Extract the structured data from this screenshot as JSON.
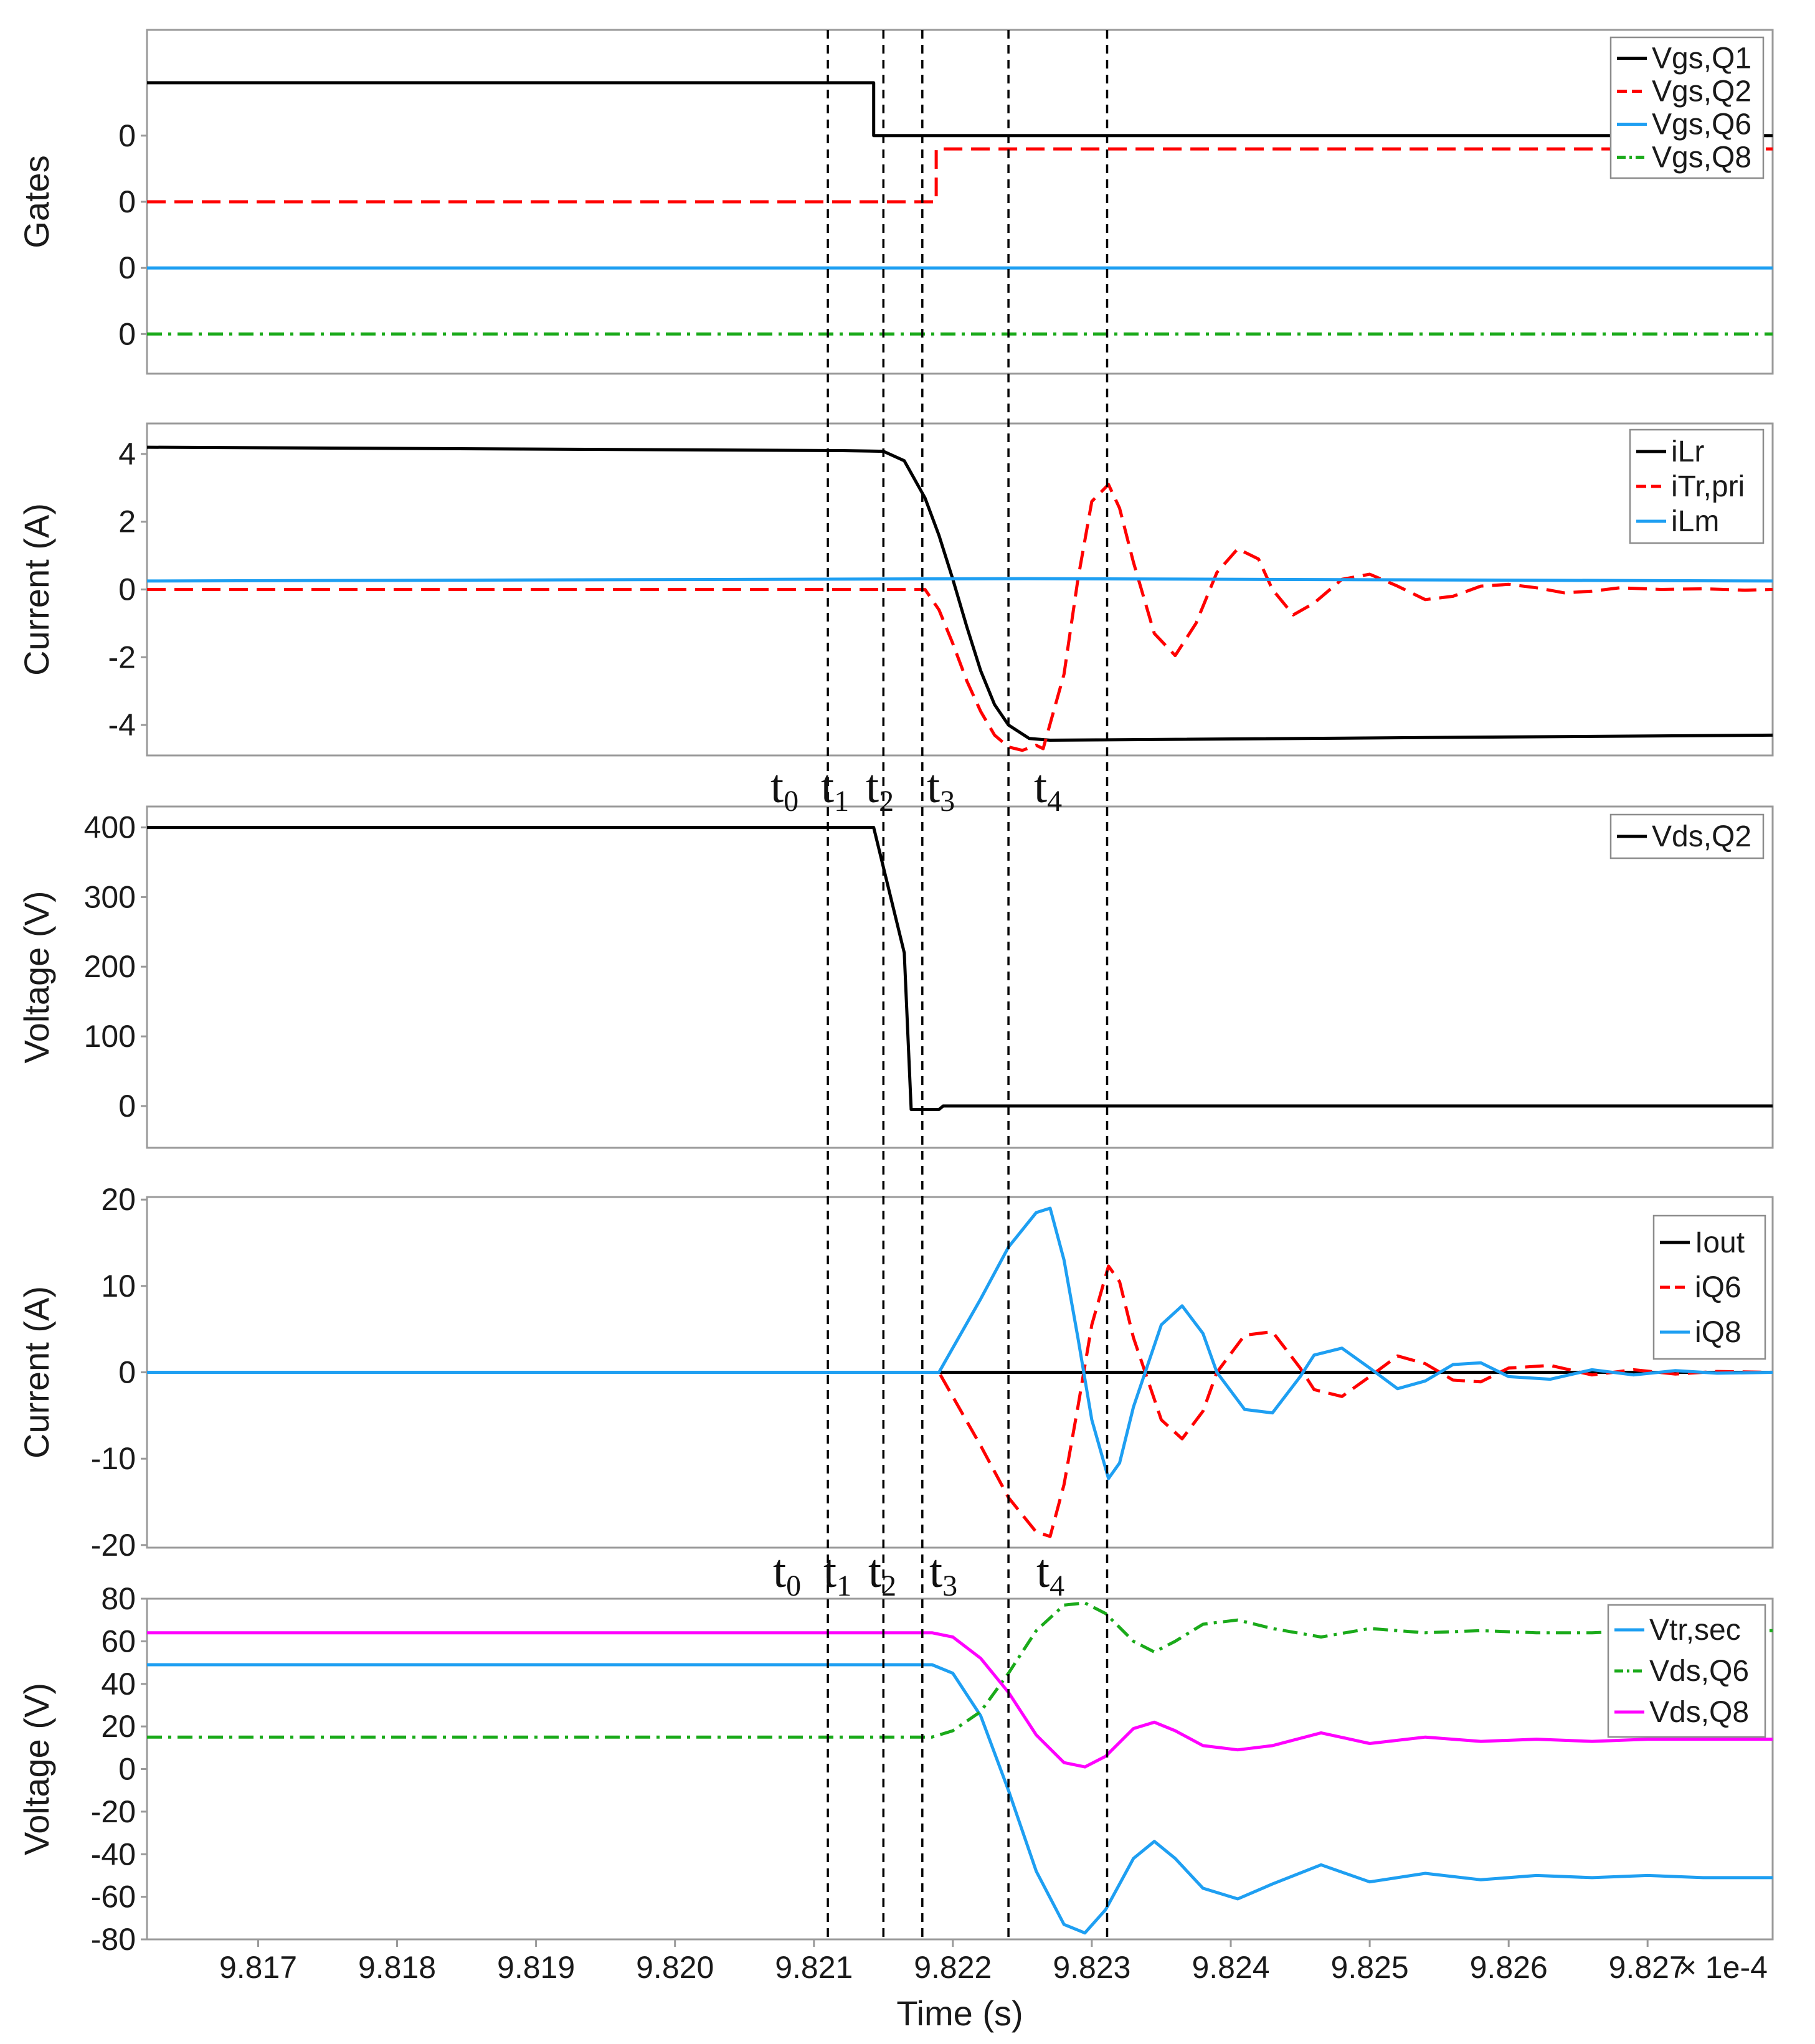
{
  "figure": {
    "x_scale_note": "× 1e-4",
    "xlabel": "Time (s)",
    "x_ticks": [
      "9.817",
      "9.818",
      "9.819",
      "9.820",
      "9.821",
      "9.822",
      "9.823",
      "9.824",
      "9.825",
      "9.826",
      "9.827"
    ],
    "time_markers": {
      "labels": [
        "t",
        "t",
        "t",
        "t",
        "t"
      ],
      "subscripts": [
        "0",
        "1",
        "2",
        "3",
        "4"
      ],
      "times_e4": [
        9.8211,
        9.8215,
        9.82178,
        9.8224,
        9.82311
      ]
    }
  },
  "chart_data": [
    {
      "type": "line",
      "id": "gates",
      "ylabel": "Gates",
      "xlim": [
        9.8162,
        9.8279
      ],
      "ylim": [
        -0.6,
        4.6
      ],
      "y_ticks": [
        "0",
        "0",
        "0",
        "0"
      ],
      "y_tick_positions": [
        3,
        2,
        1,
        0
      ],
      "series": [
        {
          "name": "Vgs,Q1",
          "color": "#000000",
          "dash": "solid",
          "x": [
            9.8162,
            9.82143,
            9.82143,
            9.8279
          ],
          "y": [
            3.8,
            3.8,
            3.0,
            3.0
          ]
        },
        {
          "name": "Vgs,Q2",
          "color": "#ff0000",
          "dash": "dash",
          "x": [
            9.8162,
            9.82188,
            9.82188,
            9.8279
          ],
          "y": [
            2.0,
            2.0,
            2.8,
            2.8
          ]
        },
        {
          "name": "Vgs,Q6",
          "color": "#1e9ff2",
          "dash": "solid",
          "x": [
            9.8162,
            9.8279
          ],
          "y": [
            1.0,
            1.0
          ]
        },
        {
          "name": "Vgs,Q8",
          "color": "#1aaa1a",
          "dash": "dashdot",
          "x": [
            9.8162,
            9.8279
          ],
          "y": [
            0.0,
            0.0
          ]
        }
      ]
    },
    {
      "type": "line",
      "id": "primary-current",
      "ylabel": "Current (A)",
      "xlim": [
        9.8162,
        9.8279
      ],
      "ylim": [
        -4.9,
        4.9
      ],
      "y_ticks": [
        "4",
        "2",
        "0",
        "-2",
        "-4"
      ],
      "y_tick_positions": [
        4,
        2,
        0,
        -2,
        -4
      ],
      "series": [
        {
          "name": "iLr",
          "color": "#000000",
          "dash": "solid",
          "x": [
            9.8162,
            9.8212,
            9.8215,
            9.82165,
            9.8218,
            9.8219,
            9.822,
            9.8221,
            9.8222,
            9.8223,
            9.8224,
            9.82255,
            9.8227,
            9.8279
          ],
          "y": [
            4.2,
            4.1,
            4.08,
            3.8,
            2.7,
            1.6,
            0.3,
            -1.1,
            -2.4,
            -3.4,
            -4.0,
            -4.4,
            -4.45,
            -4.3
          ]
        },
        {
          "name": "iTr,pri",
          "color": "#ff0000",
          "dash": "dash",
          "x": [
            9.8162,
            9.8218,
            9.8219,
            9.822,
            9.8221,
            9.8222,
            9.8223,
            9.8224,
            9.8225,
            9.8226,
            9.82265,
            9.8228,
            9.8229,
            9.823,
            9.82312,
            9.8232,
            9.8233,
            9.82345,
            9.8236,
            9.82375,
            9.8239,
            9.82405,
            9.8242,
            9.8243,
            9.82445,
            9.8246,
            9.8248,
            9.825,
            9.8252,
            9.8254,
            9.8256,
            9.8258,
            9.826,
            9.8262,
            9.8264,
            9.8266,
            9.8268,
            9.8271,
            9.8274,
            9.8277,
            9.8279
          ],
          "y": [
            0.0,
            0.0,
            -0.6,
            -1.6,
            -2.7,
            -3.6,
            -4.3,
            -4.65,
            -4.75,
            -4.6,
            -4.7,
            -2.5,
            0.3,
            2.6,
            3.1,
            2.4,
            0.8,
            -1.3,
            -1.95,
            -1.0,
            0.5,
            1.2,
            0.9,
            0.0,
            -0.75,
            -0.4,
            0.3,
            0.45,
            0.1,
            -0.3,
            -0.2,
            0.1,
            0.15,
            0.05,
            -0.1,
            -0.05,
            0.05,
            0.0,
            0.02,
            -0.02,
            0.0
          ]
        },
        {
          "name": "iLm",
          "color": "#1e9ff2",
          "dash": "solid",
          "x": [
            9.8162,
            9.8225,
            9.8279
          ],
          "y": [
            0.25,
            0.32,
            0.25
          ]
        }
      ]
    },
    {
      "type": "line",
      "id": "vds-q2",
      "ylabel": "Voltage (V)",
      "xlim": [
        9.8162,
        9.8279
      ],
      "ylim": [
        -60,
        430
      ],
      "y_ticks": [
        "400",
        "300",
        "200",
        "100",
        "0"
      ],
      "y_tick_positions": [
        400,
        300,
        200,
        100,
        0
      ],
      "series": [
        {
          "name": "Vds,Q2",
          "color": "#000000",
          "dash": "solid",
          "x": [
            9.8162,
            9.82143,
            9.82165,
            9.8217,
            9.8219,
            9.82193,
            9.8279
          ],
          "y": [
            400,
            400,
            220,
            -5,
            -5,
            0,
            0
          ]
        }
      ]
    },
    {
      "type": "line",
      "id": "secondary-current",
      "ylabel": "Current (A)",
      "xlim": [
        9.8162,
        9.8279
      ],
      "ylim": [
        -20.3,
        20.3
      ],
      "y_ticks": [
        "20",
        "10",
        "0",
        "-10",
        "-20"
      ],
      "y_tick_positions": [
        20,
        10,
        0,
        -10,
        -20
      ],
      "series": [
        {
          "name": "Iout",
          "color": "#000000",
          "dash": "solid",
          "x": [
            9.8162,
            9.8279
          ],
          "y": [
            0.0,
            0.0
          ]
        },
        {
          "name": "iQ6",
          "color": "#ff0000",
          "dash": "dash",
          "x": [
            9.8162,
            9.8219,
            9.8222,
            9.8224,
            9.8226,
            9.8227,
            9.8228,
            9.8229,
            9.823,
            9.82312,
            9.8232,
            9.8233,
            9.8235,
            9.82365,
            9.8238,
            9.8239,
            9.8241,
            9.8243,
            9.8245,
            9.8246,
            9.8248,
            9.825,
            9.8252,
            9.8254,
            9.8256,
            9.8258,
            9.826,
            9.8263,
            9.8266,
            9.8269,
            9.8272,
            9.8275,
            9.8279
          ],
          "y": [
            0.0,
            0.0,
            -8.5,
            -14.5,
            -18.5,
            -19.0,
            -13.0,
            -4.0,
            5.5,
            12.3,
            10.5,
            4.0,
            -5.5,
            -7.7,
            -4.5,
            0.0,
            4.3,
            4.7,
            0.5,
            -2.0,
            -2.8,
            -0.5,
            1.9,
            1.0,
            -0.9,
            -1.1,
            0.5,
            0.8,
            -0.3,
            0.3,
            -0.2,
            0.1,
            0.0
          ]
        },
        {
          "name": "iQ8",
          "color": "#1e9ff2",
          "dash": "solid",
          "x": [
            9.8162,
            9.8219,
            9.8222,
            9.8224,
            9.8226,
            9.8227,
            9.8228,
            9.8229,
            9.823,
            9.82312,
            9.8232,
            9.8233,
            9.8235,
            9.82365,
            9.8238,
            9.8239,
            9.8241,
            9.8243,
            9.8245,
            9.8246,
            9.8248,
            9.825,
            9.8252,
            9.8254,
            9.8256,
            9.8258,
            9.826,
            9.8263,
            9.8266,
            9.8269,
            9.8272,
            9.8275,
            9.8279
          ],
          "y": [
            0.0,
            0.0,
            8.5,
            14.5,
            18.5,
            19.0,
            13.0,
            4.0,
            -5.5,
            -12.3,
            -10.5,
            -4.0,
            5.5,
            7.7,
            4.5,
            0.0,
            -4.3,
            -4.7,
            -0.5,
            2.0,
            2.8,
            0.5,
            -1.9,
            -1.0,
            0.9,
            1.1,
            -0.5,
            -0.8,
            0.3,
            -0.3,
            0.2,
            -0.1,
            0.0
          ]
        }
      ]
    },
    {
      "type": "line",
      "id": "secondary-voltage",
      "ylabel": "Voltage (V)",
      "xlim": [
        9.8162,
        9.8279
      ],
      "ylim": [
        -80,
        80
      ],
      "y_ticks": [
        "80",
        "60",
        "40",
        "20",
        "0",
        "-20",
        "-40",
        "-60",
        "-80"
      ],
      "y_tick_positions": [
        80,
        60,
        40,
        20,
        0,
        -20,
        -40,
        -60,
        -80
      ],
      "series": [
        {
          "name": "Vtr,sec",
          "color": "#1e9ff2",
          "dash": "solid",
          "x": [
            9.8162,
            9.82185,
            9.822,
            9.8222,
            9.8224,
            9.8226,
            9.8228,
            9.82295,
            9.8231,
            9.8233,
            9.82345,
            9.8236,
            9.8238,
            9.82405,
            9.8243,
            9.82465,
            9.825,
            9.8254,
            9.8258,
            9.8262,
            9.8266,
            9.827,
            9.8274,
            9.8279
          ],
          "y": [
            49,
            49,
            45,
            25,
            -10,
            -48,
            -73,
            -77,
            -66,
            -42,
            -34,
            -42,
            -56,
            -61,
            -54,
            -45,
            -53,
            -49,
            -52,
            -50,
            -51,
            -50,
            -51,
            -51
          ]
        },
        {
          "name": "Vds,Q6",
          "color": "#1aaa1a",
          "dash": "dashdot",
          "x": [
            9.8162,
            9.82185,
            9.822,
            9.8222,
            9.8224,
            9.8226,
            9.8228,
            9.82295,
            9.8231,
            9.8233,
            9.82345,
            9.8236,
            9.8238,
            9.82405,
            9.8243,
            9.82465,
            9.825,
            9.8254,
            9.8258,
            9.8262,
            9.8266,
            9.827,
            9.8274,
            9.8279
          ],
          "y": [
            15,
            15,
            18,
            27,
            45,
            65,
            77,
            78,
            73,
            60,
            55,
            60,
            68,
            70,
            66,
            62,
            66,
            64,
            65,
            64,
            64,
            65,
            65,
            65
          ]
        },
        {
          "name": "Vds,Q8",
          "color": "#ff00ff",
          "dash": "solid",
          "x": [
            9.8162,
            9.82185,
            9.822,
            9.8222,
            9.8224,
            9.8226,
            9.8228,
            9.82295,
            9.8231,
            9.8233,
            9.82345,
            9.8236,
            9.8238,
            9.82405,
            9.8243,
            9.82465,
            9.825,
            9.8254,
            9.8258,
            9.8262,
            9.8266,
            9.827,
            9.8274,
            9.8279
          ],
          "y": [
            64,
            64,
            62,
            52,
            36,
            16,
            3,
            1,
            6,
            19,
            22,
            18,
            11,
            9,
            11,
            17,
            12,
            15,
            13,
            14,
            13,
            14,
            14,
            14
          ]
        }
      ]
    }
  ]
}
